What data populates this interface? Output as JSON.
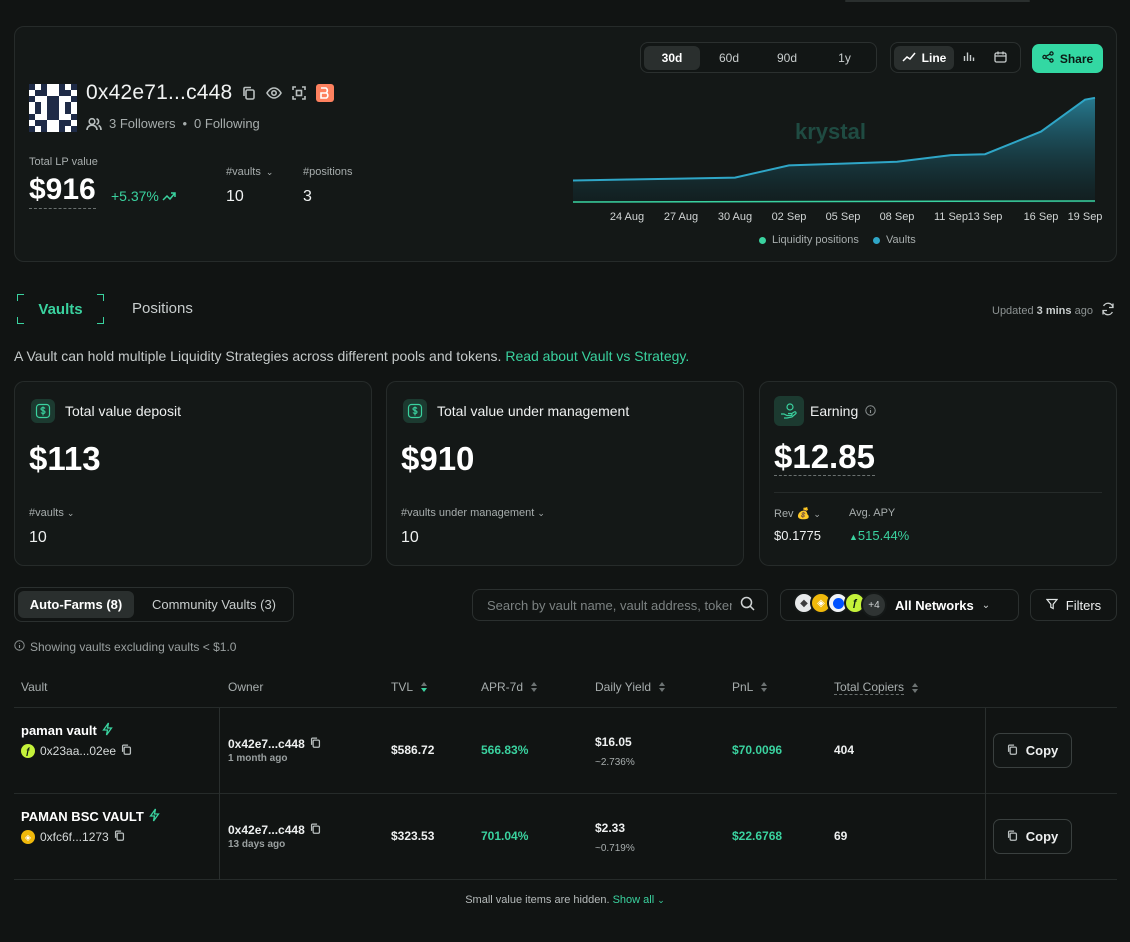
{
  "profile": {
    "address": "0x42e71...c448",
    "followers": "3 Followers",
    "separator": "•",
    "following": "0 Following",
    "total_lp_label": "Total LP value",
    "total_lp_value": "$916",
    "total_lp_change": "+5.37%",
    "vaults_label": "#vaults",
    "vaults_value": "10",
    "positions_label": "#positions",
    "positions_value": "3"
  },
  "chart_controls": {
    "ranges": [
      "30d",
      "60d",
      "90d",
      "1y"
    ],
    "active_range": "30d",
    "mode_line": "Line",
    "share": "Share",
    "watermark": "krystal"
  },
  "chart_data": {
    "type": "area",
    "x": [
      "24 Aug",
      "27 Aug",
      "30 Aug",
      "02 Sep",
      "05 Sep",
      "08 Sep",
      "11 Sep",
      "13 Sep",
      "16 Sep",
      "19 Sep"
    ],
    "series": [
      {
        "name": "Liquidity positions",
        "color": "#3ad29f",
        "values": [
          0,
          0,
          0,
          0,
          0,
          0,
          0,
          0,
          0,
          0
        ]
      },
      {
        "name": "Vaults",
        "color": "#2fa6c7",
        "values": [
          25,
          26,
          27,
          40,
          42,
          44,
          51,
          52,
          76,
          110
        ]
      }
    ],
    "legend_position": "bottom",
    "grid": false
  },
  "tabs": {
    "vaults": "Vaults",
    "positions": "Positions"
  },
  "updated": {
    "prefix": "Updated",
    "value": "3 mins",
    "suffix": "ago"
  },
  "intro": {
    "text": "A Vault can hold multiple Liquidity Strategies across different pools and tokens.",
    "link": "Read about Vault vs Strategy."
  },
  "kpis": {
    "deposit": {
      "title": "Total value deposit",
      "value": "$113",
      "sub_label": "#vaults",
      "sub_value": "10"
    },
    "management": {
      "title": "Total value under management",
      "value": "$910",
      "sub_label": "#vaults under management",
      "sub_value": "10"
    },
    "earning": {
      "title": "Earning",
      "value": "$12.85",
      "rev_label": "Rev 💰",
      "rev_value": "$0.1775",
      "apy_label": "Avg. APY",
      "apy_value": "515.44%"
    }
  },
  "filters": {
    "auto_farms": "Auto-Farms (8)",
    "community": "Community Vaults (3)",
    "search_placeholder": "Search by vault name, vault address, token",
    "networks_more": "+4",
    "networks_label": "All Networks",
    "filters_label": "Filters",
    "showing": "Showing vaults excluding vaults < $1.0"
  },
  "table": {
    "headers": {
      "vault": "Vault",
      "owner": "Owner",
      "tvl": "TVL",
      "apr": "APR-7d",
      "daily_yield": "Daily Yield",
      "pnl": "PnL",
      "copiers": "Total Copiers"
    },
    "rows": [
      {
        "name": "paman vault",
        "address": "0x23aa...02ee",
        "owner": "0x42e7...c448",
        "owner_ago": "1 month ago",
        "tvl": "$586.72",
        "apr": "566.83%",
        "daily_yield": "$16.05",
        "daily_yield_pct": "~2.736%",
        "pnl": "$70.0096",
        "copiers": "404",
        "copy": "Copy"
      },
      {
        "name": "PAMAN BSC VAULT",
        "address": "0xfc6f...1273",
        "owner": "0x42e7...c448",
        "owner_ago": "13 days ago",
        "tvl": "$323.53",
        "apr": "701.04%",
        "daily_yield": "$2.33",
        "daily_yield_pct": "~0.719%",
        "pnl": "$22.6768",
        "copiers": "69",
        "copy": "Copy"
      }
    ]
  },
  "footer": {
    "text": "Small value items are hidden.",
    "link": "Show all"
  }
}
